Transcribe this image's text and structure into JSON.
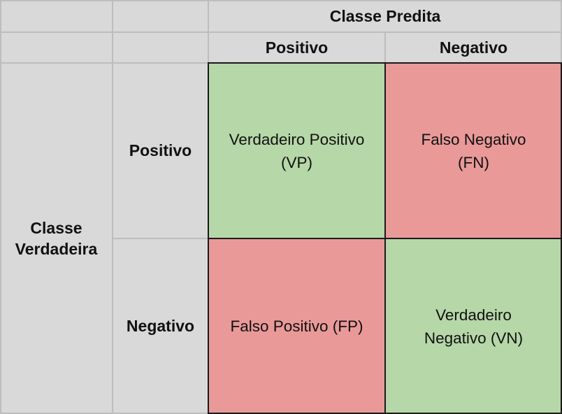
{
  "header": {
    "predicted_class": "Classe Predita",
    "predicted_positive": "Positivo",
    "predicted_negative": "Negativo"
  },
  "rows": {
    "actual_class_line1": "Classe",
    "actual_class_line2": "Verdadeira",
    "actual_positive": "Positivo",
    "actual_negative": "Negativo"
  },
  "cells": {
    "tp_line1": "Verdadeiro Positivo",
    "tp_line2": "(VP)",
    "fn_line1": "Falso Negativo",
    "fn_line2": "(FN)",
    "fp_line1": "Falso Positivo (FP)",
    "tn_line1": "Verdadeiro",
    "tn_line2": "Negativo (VN)"
  },
  "colors": {
    "header_gray": "#d9d9d9",
    "correct_green": "#b6d7a8",
    "error_red": "#ea9999"
  }
}
